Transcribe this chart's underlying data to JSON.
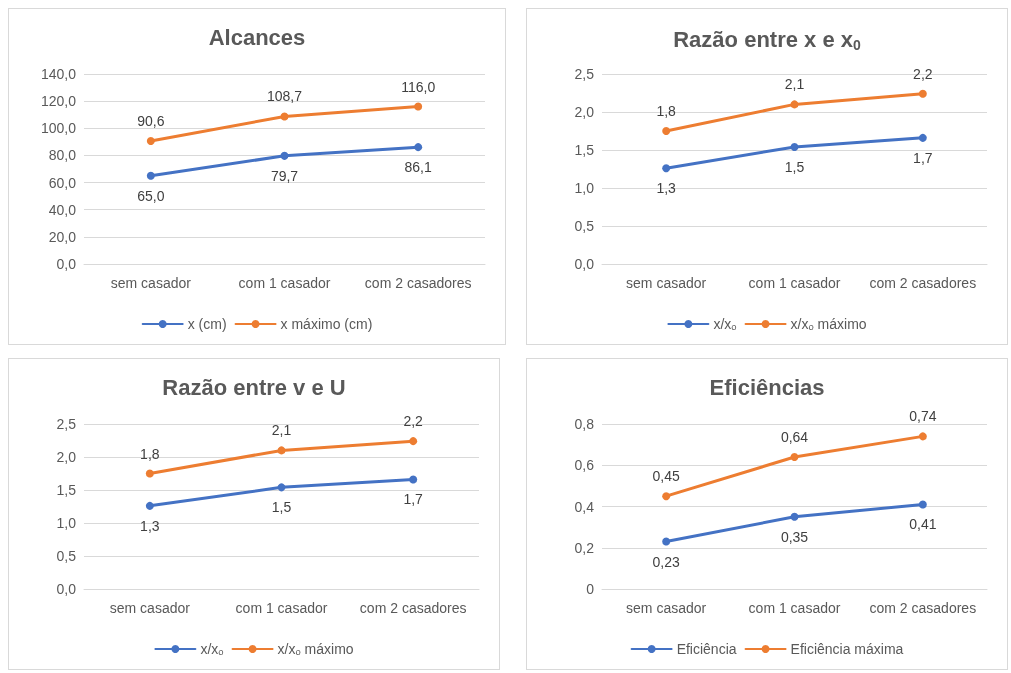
{
  "chart_data": [
    {
      "type": "line",
      "title": "Alcances",
      "categories": [
        "sem casador",
        "com 1 casador",
        "com 2 casadores"
      ],
      "series": [
        {
          "name": "x (cm)",
          "color": "#4472c4",
          "values": [
            65.0,
            79.7,
            86.1
          ],
          "value_labels": [
            "65,0",
            "79,7",
            "86,1"
          ]
        },
        {
          "name": "x máximo (cm)",
          "color": "#ed7d31",
          "values": [
            90.6,
            108.7,
            116.0
          ],
          "value_labels": [
            "90,6",
            "108,7",
            "116,0"
          ]
        }
      ],
      "ylim": [
        0,
        140
      ],
      "yticks": [
        {
          "value": 0,
          "label": "0,0"
        },
        {
          "value": 20,
          "label": "20,0"
        },
        {
          "value": 40,
          "label": "40,0"
        },
        {
          "value": 60,
          "label": "60,0"
        },
        {
          "value": 80,
          "label": "80,0"
        },
        {
          "value": 100,
          "label": "100,0"
        },
        {
          "value": 120,
          "label": "120,0"
        },
        {
          "value": 140,
          "label": "140,0"
        }
      ],
      "grid": "y",
      "legend": "bottom",
      "marker": "circle",
      "line_style": "solid"
    },
    {
      "type": "line",
      "title": "Razão entre x e x$_{0}$",
      "categories": [
        "sem casador",
        "com 1 casador",
        "com 2 casadores"
      ],
      "series": [
        {
          "name": "x/xₒ",
          "color": "#4472c4",
          "values": [
            1.26,
            1.54,
            1.66
          ],
          "value_labels": [
            "1,3",
            "1,5",
            "1,7"
          ]
        },
        {
          "name": "x/xₒ máximo",
          "color": "#ed7d31",
          "values": [
            1.75,
            2.1,
            2.24
          ],
          "value_labels": [
            "1,8",
            "2,1",
            "2,2"
          ]
        }
      ],
      "ylim": [
        0,
        2.5
      ],
      "yticks": [
        {
          "value": 0,
          "label": "0,0"
        },
        {
          "value": 0.5,
          "label": "0,5"
        },
        {
          "value": 1,
          "label": "1,0"
        },
        {
          "value": 1.5,
          "label": "1,5"
        },
        {
          "value": 2,
          "label": "2,0"
        },
        {
          "value": 2.5,
          "label": "2,5"
        }
      ],
      "grid": "y",
      "legend": "bottom",
      "marker": "circle",
      "line_style": "solid"
    },
    {
      "type": "line",
      "title": "Razão entre v e U",
      "categories": [
        "sem casador",
        "com 1 casador",
        "com 2 casadores"
      ],
      "series": [
        {
          "name": "x/xₒ",
          "color": "#4472c4",
          "values": [
            1.26,
            1.54,
            1.66
          ],
          "value_labels": [
            "1,3",
            "1,5",
            "1,7"
          ]
        },
        {
          "name": "x/xₒ máximo",
          "color": "#ed7d31",
          "values": [
            1.75,
            2.1,
            2.24
          ],
          "value_labels": [
            "1,8",
            "2,1",
            "2,2"
          ]
        }
      ],
      "ylim": [
        0,
        2.5
      ],
      "yticks": [
        {
          "value": 0,
          "label": "0,0"
        },
        {
          "value": 0.5,
          "label": "0,5"
        },
        {
          "value": 1,
          "label": "1,0"
        },
        {
          "value": 1.5,
          "label": "1,5"
        },
        {
          "value": 2,
          "label": "2,0"
        },
        {
          "value": 2.5,
          "label": "2,5"
        }
      ],
      "grid": "y",
      "legend": "bottom",
      "marker": "circle",
      "line_style": "solid"
    },
    {
      "type": "line",
      "title": "Eficiências",
      "categories": [
        "sem casador",
        "com 1 casador",
        "com 2 casadores"
      ],
      "series": [
        {
          "name": "Eficiência",
          "color": "#4472c4",
          "values": [
            0.23,
            0.35,
            0.41
          ],
          "value_labels": [
            "0,23",
            "0,35",
            "0,41"
          ]
        },
        {
          "name": "Eficiência máxima",
          "color": "#ed7d31",
          "values": [
            0.45,
            0.64,
            0.74
          ],
          "value_labels": [
            "0,45",
            "0,64",
            "0,74"
          ]
        }
      ],
      "ylim": [
        0,
        0.8
      ],
      "yticks": [
        0,
        {
          "value": 0.2,
          "label": "0,2"
        },
        {
          "value": 0.4,
          "label": "0,4"
        },
        {
          "value": 0.6,
          "label": "0,6"
        },
        {
          "value": 0.8,
          "label": "0,8"
        }
      ],
      "grid": "y",
      "legend": "bottom",
      "marker": "circle",
      "line_style": "solid"
    }
  ]
}
